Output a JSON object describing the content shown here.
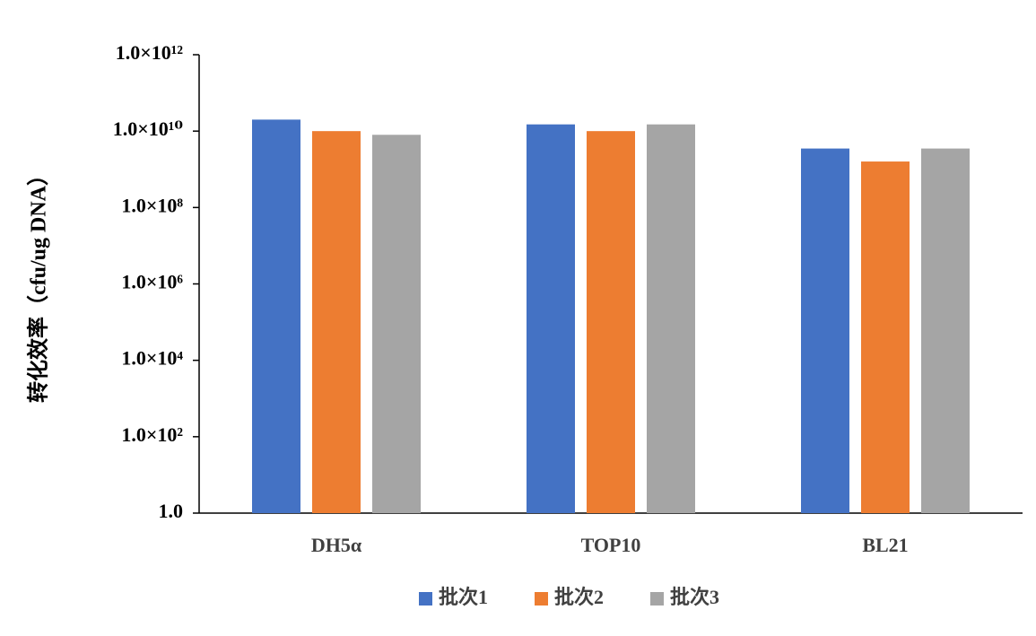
{
  "chart_data": {
    "type": "bar",
    "y_label": "转化效率（cfu/ug DNA）",
    "categories": [
      "DH5α",
      "TOP10",
      "BL21"
    ],
    "series": [
      {
        "name": "批次1",
        "color": "#4472c4",
        "values": [
          20000000000,
          15000000000,
          3500000000
        ]
      },
      {
        "name": "批次2",
        "color": "#ed7d31",
        "values": [
          10000000000,
          10000000000,
          1600000000
        ]
      },
      {
        "name": "批次3",
        "color": "#a5a5a5",
        "values": [
          8000000000,
          15000000000,
          3500000000
        ]
      }
    ],
    "log_scale": true,
    "ylim": [
      1,
      1000000000000
    ],
    "yticks": [
      {
        "value": 1,
        "label": "1.0"
      },
      {
        "value": 100,
        "label": "1.0×10²"
      },
      {
        "value": 10000,
        "label": "1.0×10⁴"
      },
      {
        "value": 1000000,
        "label": "1.0×10⁶"
      },
      {
        "value": 100000000,
        "label": "1.0×10⁸"
      },
      {
        "value": 10000000000,
        "label": "1.0×10¹⁰"
      },
      {
        "value": 1000000000000,
        "label": "1.0×10¹²"
      }
    ],
    "grid": false,
    "legend": "bottom"
  }
}
